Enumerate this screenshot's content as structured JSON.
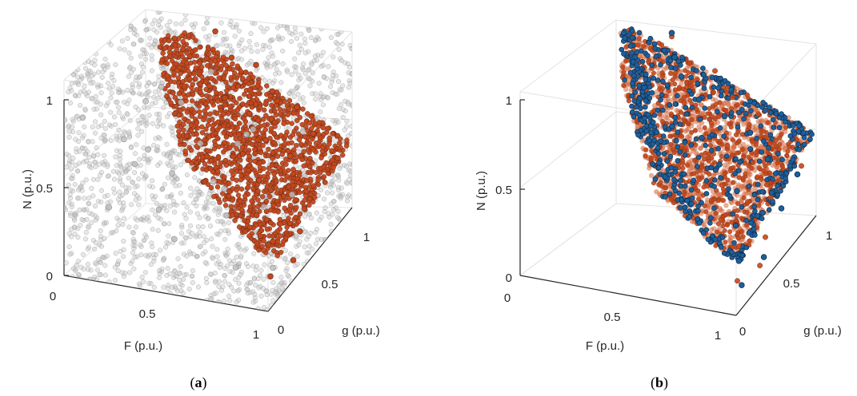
{
  "colors": {
    "background_points": "#bdbdbd",
    "pareto_fill": "#c4471c",
    "pareto_edge": "#5a2a1a",
    "highlight_fill": "#1f5f9a",
    "highlight_edge": "#0b2a47",
    "grid": "#e3e3e3",
    "axis": "#262626"
  },
  "chart_data": [
    {
      "type": "scatter",
      "projection": "3d",
      "caption_letter": "a",
      "xlabel": "F (p.u.)",
      "ylabel": "g (p.u.)",
      "zlabel": "N (p.u.)",
      "xlim": [
        0,
        1
      ],
      "ylim": [
        0,
        1
      ],
      "zlim": [
        0,
        1
      ],
      "x_ticks": [
        "0",
        "0.5",
        "1"
      ],
      "y_ticks": [
        "0",
        "0.5",
        "1"
      ],
      "z_ticks": [
        "0",
        "0.5",
        "1"
      ],
      "grid": true,
      "series": [
        {
          "role": "background",
          "description_free": true,
          "points": [
            [
              0.05,
              0.1,
              0.85
            ],
            [
              0.2,
              0.05,
              0.4
            ],
            [
              0.35,
              0.15,
              0.7
            ],
            [
              0.5,
              0.1,
              0.25
            ],
            [
              0.65,
              0.2,
              0.55
            ],
            [
              0.8,
              0.1,
              0.15
            ],
            [
              0.15,
              0.35,
              0.6
            ],
            [
              0.3,
              0.4,
              0.2
            ],
            [
              0.45,
              0.3,
              0.9
            ],
            [
              0.6,
              0.45,
              0.35
            ],
            [
              0.75,
              0.35,
              0.75
            ],
            [
              0.9,
              0.3,
              0.05
            ],
            [
              0.1,
              0.6,
              0.3
            ],
            [
              0.25,
              0.55,
              0.8
            ],
            [
              0.4,
              0.65,
              0.45
            ],
            [
              0.55,
              0.6,
              0.1
            ],
            [
              0.7,
              0.55,
              0.65
            ],
            [
              0.85,
              0.65,
              0.25
            ],
            [
              0.05,
              0.85,
              0.5
            ],
            [
              0.2,
              0.8,
              0.15
            ],
            [
              0.35,
              0.9,
              0.7
            ],
            [
              0.5,
              0.85,
              0.35
            ],
            [
              0.65,
              0.8,
              0.05
            ],
            [
              0.8,
              0.9,
              0.45
            ]
          ]
        },
        {
          "role": "pareto",
          "points": [
            [
              0.35,
              0.95,
              0.9
            ],
            [
              0.45,
              0.9,
              0.8
            ],
            [
              0.55,
              0.95,
              0.75
            ],
            [
              0.65,
              0.9,
              0.65
            ],
            [
              0.75,
              0.95,
              0.55
            ],
            [
              0.85,
              0.9,
              0.45
            ],
            [
              0.95,
              0.95,
              0.3
            ],
            [
              0.5,
              0.7,
              0.7
            ],
            [
              0.6,
              0.75,
              0.6
            ],
            [
              0.7,
              0.7,
              0.5
            ],
            [
              0.8,
              0.75,
              0.4
            ],
            [
              0.9,
              0.7,
              0.25
            ],
            [
              0.65,
              0.55,
              0.5
            ],
            [
              0.75,
              0.5,
              0.4
            ],
            [
              0.85,
              0.55,
              0.3
            ],
            [
              0.95,
              0.5,
              0.15
            ],
            [
              0.8,
              0.35,
              0.3
            ],
            [
              0.9,
              0.3,
              0.2
            ],
            [
              0.98,
              0.35,
              0.08
            ],
            [
              0.95,
              0.15,
              0.1
            ]
          ]
        }
      ]
    },
    {
      "type": "scatter",
      "projection": "3d",
      "caption_letter": "b",
      "xlabel": "F (p.u.)",
      "ylabel": "g (p.u.)",
      "zlabel": "N (p.u.)",
      "xlim": [
        0,
        1
      ],
      "ylim": [
        0,
        1
      ],
      "zlim": [
        0,
        1
      ],
      "x_ticks": [
        "0",
        "0.5",
        "1"
      ],
      "y_ticks": [
        "0",
        "0.5",
        "1"
      ],
      "z_ticks": [
        "0",
        "0.5",
        "1"
      ],
      "grid": true,
      "series": [
        {
          "role": "pareto",
          "points": [
            [
              0.35,
              0.95,
              0.9
            ],
            [
              0.45,
              0.9,
              0.8
            ],
            [
              0.55,
              0.95,
              0.75
            ],
            [
              0.65,
              0.9,
              0.65
            ],
            [
              0.75,
              0.95,
              0.55
            ],
            [
              0.85,
              0.9,
              0.45
            ],
            [
              0.95,
              0.95,
              0.3
            ],
            [
              0.5,
              0.7,
              0.7
            ],
            [
              0.6,
              0.75,
              0.6
            ],
            [
              0.7,
              0.7,
              0.5
            ],
            [
              0.8,
              0.75,
              0.4
            ],
            [
              0.9,
              0.7,
              0.25
            ],
            [
              0.65,
              0.55,
              0.5
            ],
            [
              0.75,
              0.5,
              0.4
            ],
            [
              0.85,
              0.55,
              0.3
            ],
            [
              0.95,
              0.5,
              0.15
            ],
            [
              0.8,
              0.35,
              0.3
            ],
            [
              0.9,
              0.3,
              0.2
            ],
            [
              0.98,
              0.35,
              0.08
            ],
            [
              0.95,
              0.15,
              0.1
            ]
          ]
        },
        {
          "role": "highlight",
          "points": [
            [
              0.35,
              0.95,
              0.92
            ],
            [
              0.4,
              0.85,
              0.85
            ],
            [
              0.45,
              0.8,
              0.78
            ],
            [
              0.55,
              0.75,
              0.7
            ],
            [
              0.65,
              0.8,
              0.6
            ],
            [
              0.75,
              0.85,
              0.5
            ],
            [
              0.85,
              0.8,
              0.4
            ],
            [
              0.95,
              0.9,
              0.28
            ],
            [
              0.6,
              0.65,
              0.55
            ],
            [
              0.7,
              0.6,
              0.45
            ],
            [
              0.8,
              0.55,
              0.35
            ],
            [
              0.9,
              0.6,
              0.22
            ],
            [
              0.85,
              0.4,
              0.25
            ],
            [
              0.92,
              0.25,
              0.15
            ],
            [
              0.97,
              0.15,
              0.08
            ],
            [
              0.5,
              0.55,
              0.65
            ],
            [
              0.95,
              0.7,
              0.2
            ],
            [
              0.98,
              0.4,
              0.1
            ]
          ]
        }
      ]
    }
  ]
}
